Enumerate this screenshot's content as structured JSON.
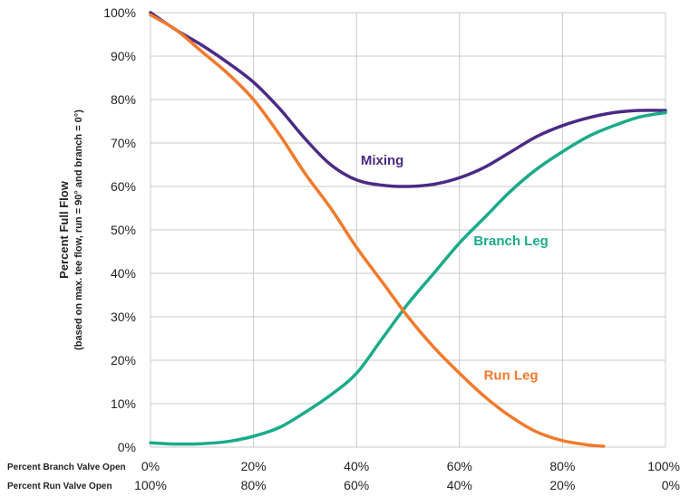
{
  "chart_data": {
    "type": "line",
    "title": "",
    "ylabel": "Percent Full Flow",
    "ylabel_sub": "(based on max. tee flow, run = 90° and branch = 0°)",
    "y_ticks": [
      "0%",
      "10%",
      "20%",
      "30%",
      "40%",
      "50%",
      "60%",
      "70%",
      "80%",
      "90%",
      "100%"
    ],
    "ylim": [
      0,
      100
    ],
    "xlim": [
      0,
      100
    ],
    "x_axes": [
      {
        "label": "Percent Branch Valve Open",
        "ticks": [
          "0%",
          "20%",
          "40%",
          "60%",
          "80%",
          "100%"
        ]
      },
      {
        "label": "Percent Run Valve Open",
        "ticks": [
          "100%",
          "80%",
          "60%",
          "40%",
          "20%",
          "0%"
        ]
      }
    ],
    "grid": true,
    "series": [
      {
        "name": "Mixing",
        "color": "#4b2a85",
        "x": [
          0,
          5,
          10,
          15,
          20,
          25,
          30,
          35,
          40,
          45,
          50,
          55,
          60,
          65,
          70,
          75,
          80,
          85,
          90,
          95,
          100
        ],
        "y": [
          100,
          96,
          92.5,
          88.5,
          84,
          78,
          71,
          65,
          61.5,
          60.3,
          60,
          60.5,
          62,
          64.5,
          68,
          71.5,
          74,
          75.8,
          77,
          77.5,
          77.5
        ]
      },
      {
        "name": "Branch Leg",
        "color": "#1aab8a",
        "x": [
          0,
          5,
          10,
          15,
          20,
          25,
          30,
          35,
          40,
          45,
          50,
          55,
          60,
          65,
          70,
          75,
          80,
          85,
          90,
          95,
          100
        ],
        "y": [
          1,
          0.7,
          0.8,
          1.3,
          2.5,
          4.5,
          8,
          12,
          17,
          25,
          33,
          40,
          47,
          53,
          59,
          64,
          68,
          71.5,
          74,
          76,
          77
        ]
      },
      {
        "name": "Run Leg",
        "color": "#f07a2c",
        "x": [
          0,
          5,
          10,
          15,
          20,
          25,
          30,
          35,
          40,
          45,
          50,
          55,
          60,
          65,
          70,
          75,
          80,
          85,
          88
        ],
        "y": [
          99.5,
          96,
          91,
          86,
          80,
          72,
          63,
          55,
          46,
          38,
          30,
          23,
          17,
          11.5,
          7,
          3.5,
          1.5,
          0.5,
          0.2
        ]
      }
    ],
    "label_positions": [
      {
        "name": "Mixing",
        "x": 45,
        "y": 65
      },
      {
        "name": "Branch Leg",
        "x": 70,
        "y": 46.5
      },
      {
        "name": "Run Leg",
        "x": 70,
        "y": 15.5
      }
    ]
  }
}
